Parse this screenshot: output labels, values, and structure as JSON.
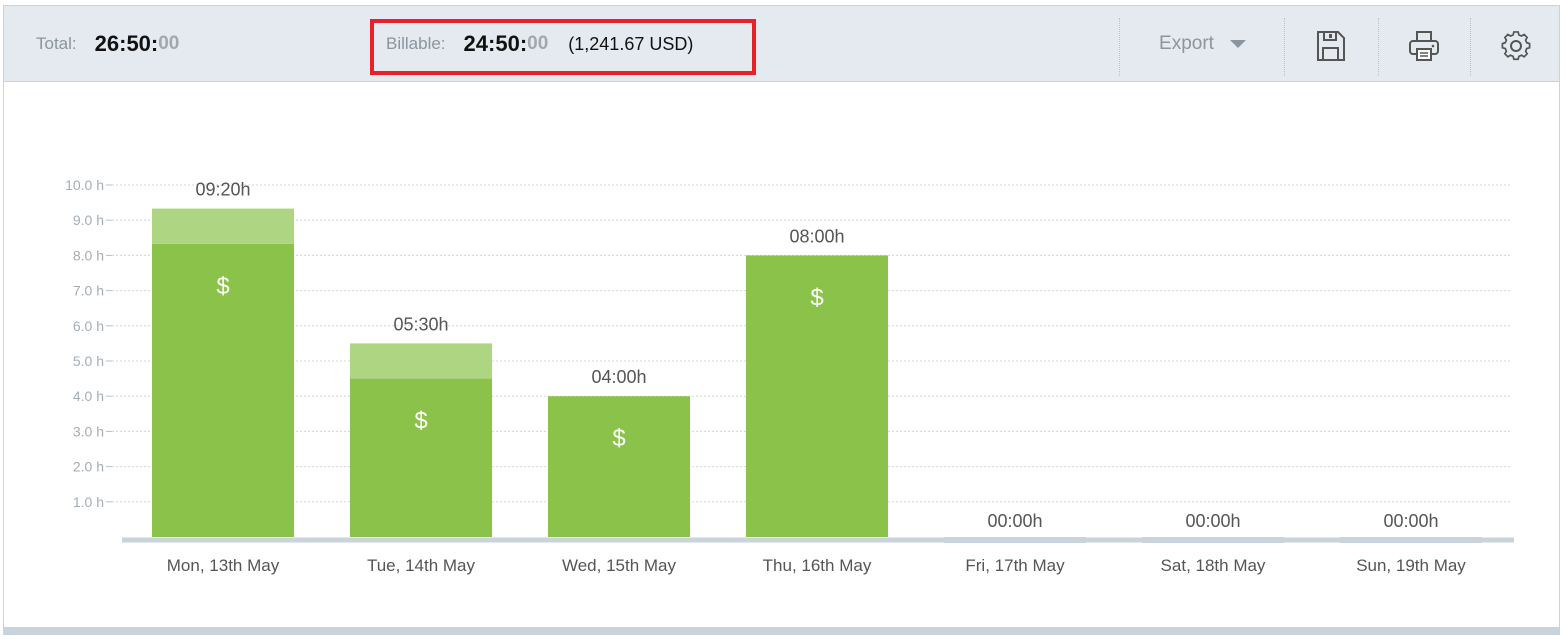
{
  "summary": {
    "total_label": "Total:",
    "total_time": "26:50:",
    "total_seconds": "00",
    "billable_label": "Billable:",
    "billable_time": "24:50:",
    "billable_seconds": "00",
    "billable_amount": "(1,241.67 USD)"
  },
  "toolbar": {
    "export_label": "Export",
    "save_icon": "save-icon",
    "print_icon": "print-icon",
    "settings_icon": "gear-icon"
  },
  "colors": {
    "billable": "#8bc34a",
    "non_billable": "#aed581",
    "empty_bar": "#c9d3dc",
    "highlight": "#e8202a"
  },
  "chart_data": {
    "type": "bar",
    "stacked": true,
    "categories": [
      "Mon, 13th May",
      "Tue, 14th May",
      "Wed, 15th May",
      "Thu, 16th May",
      "Fri, 17th May",
      "Sat, 18th May",
      "Sun, 19th May"
    ],
    "series": [
      {
        "values": [
          8.33,
          4.5,
          4.0,
          8.0,
          0,
          0,
          0
        ],
        "color": "#8bc34a"
      },
      {
        "values": [
          1.0,
          1.0,
          0,
          0,
          0,
          0,
          0
        ],
        "color": "#aed581"
      }
    ],
    "bar_labels": [
      "09:20h",
      "05:30h",
      "04:00h",
      "08:00h",
      "00:00h",
      "00:00h",
      "00:00h"
    ],
    "billable_marker": "$",
    "y_ticks": [
      "1.0 h",
      "2.0 h",
      "3.0 h",
      "4.0 h",
      "5.0 h",
      "6.0 h",
      "7.0 h",
      "8.0 h",
      "9.0 h",
      "10.0 h"
    ],
    "ylim": [
      0,
      10
    ],
    "grid": true
  }
}
